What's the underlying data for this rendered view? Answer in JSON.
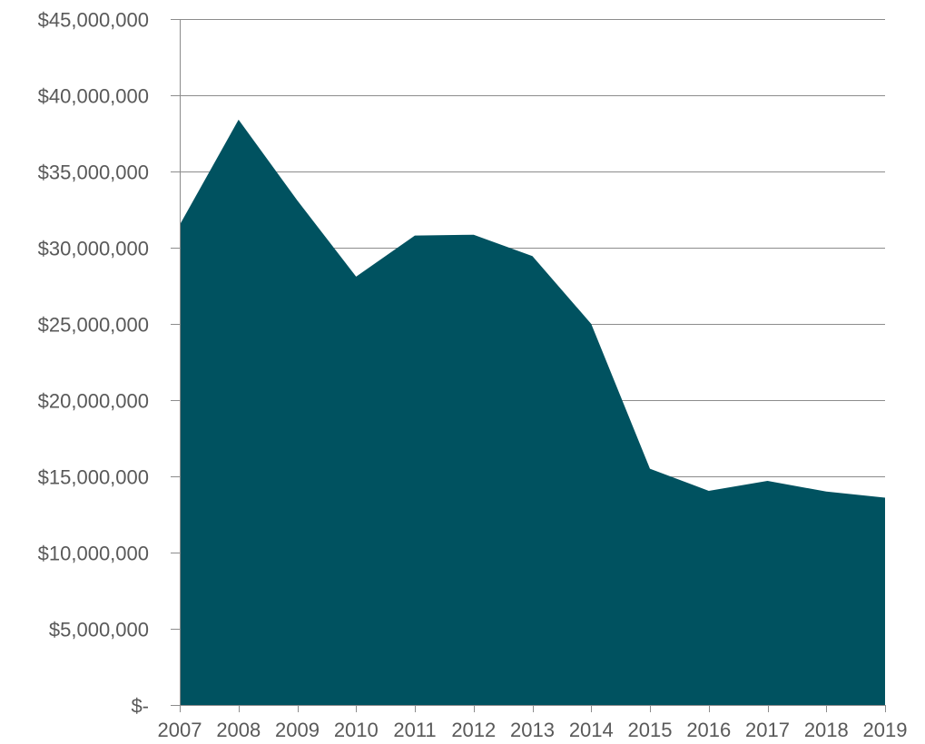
{
  "chart_data": {
    "type": "area",
    "x": [
      "2007",
      "2008",
      "2009",
      "2010",
      "2011",
      "2012",
      "2013",
      "2014",
      "2015",
      "2016",
      "2017",
      "2018",
      "2019"
    ],
    "values": [
      31500000,
      38400000,
      33100000,
      28100000,
      30800000,
      30850000,
      29450000,
      25000000,
      15500000,
      14050000,
      14700000,
      14000000,
      13600000
    ],
    "ylim": [
      0,
      45000000
    ],
    "y_ticks": [
      0,
      5000000,
      10000000,
      15000000,
      20000000,
      25000000,
      30000000,
      35000000,
      40000000,
      45000000
    ],
    "y_tick_labels": [
      "$-",
      "$5,000,000",
      "$10,000,000",
      "$15,000,000",
      "$20,000,000",
      "$25,000,000",
      "$30,000,000",
      "$35,000,000",
      "$40,000,000",
      "$45,000,000"
    ],
    "title": "",
    "xlabel": "",
    "ylabel": "",
    "grid": "horizontal",
    "legend": "none",
    "colors": {
      "area": "#005260",
      "grid": "#8c8c8c",
      "axis": "#8c8c8c",
      "text": "#595959"
    }
  }
}
